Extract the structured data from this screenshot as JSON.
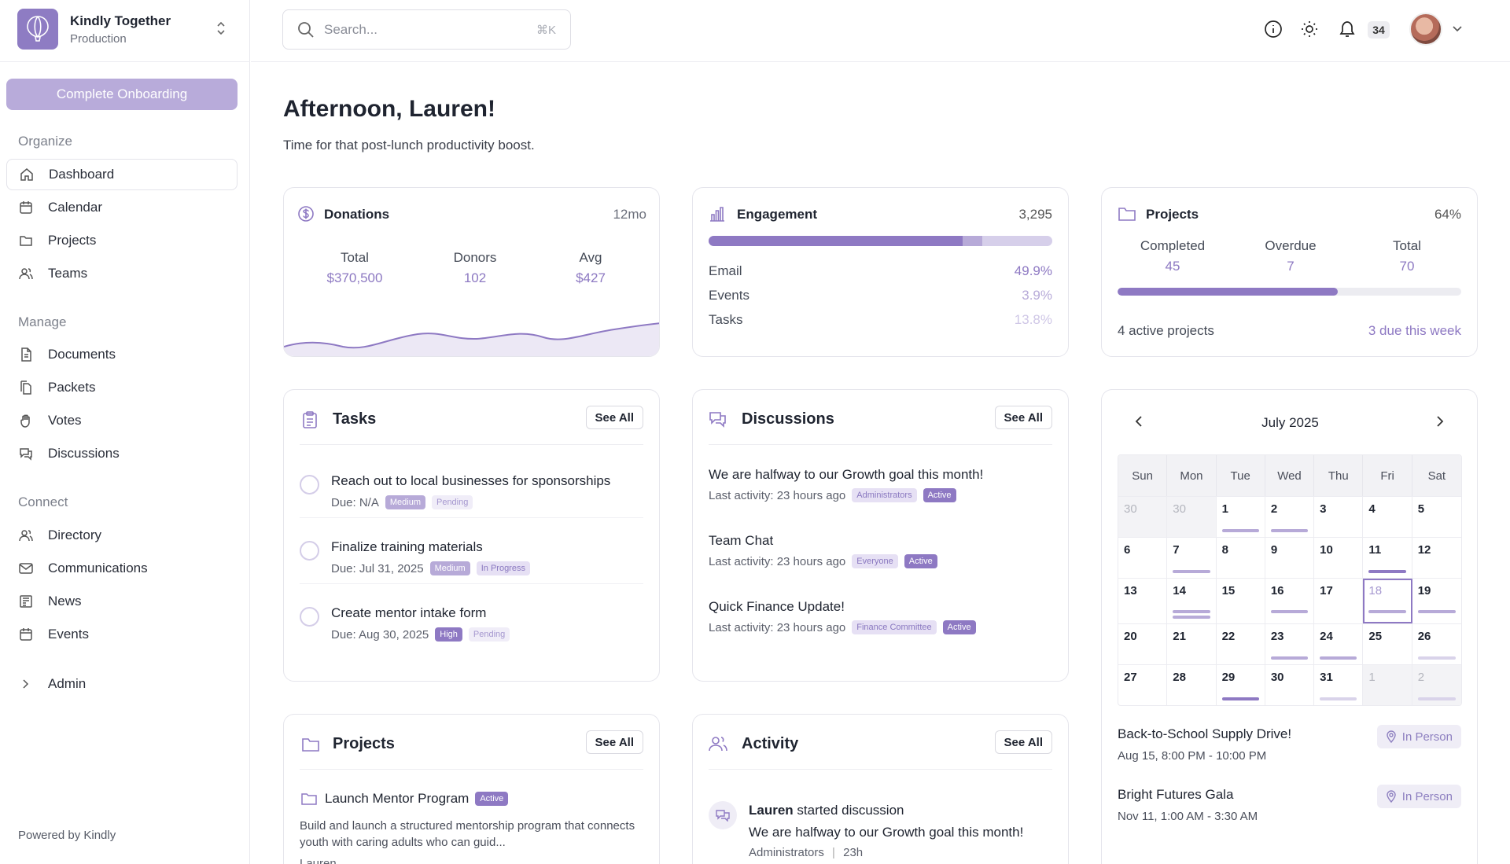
{
  "org": {
    "name": "Kindly Together",
    "env": "Production"
  },
  "sidebar": {
    "onboarding_label": "Complete Onboarding",
    "sections": {
      "organize": "Organize",
      "manage": "Manage",
      "connect": "Connect"
    },
    "items": {
      "dashboard": "Dashboard",
      "calendar": "Calendar",
      "projects": "Projects",
      "teams": "Teams",
      "documents": "Documents",
      "packets": "Packets",
      "votes": "Votes",
      "discussions": "Discussions",
      "directory": "Directory",
      "communications": "Communications",
      "news": "News",
      "events": "Events",
      "admin": "Admin"
    },
    "powered_by": "Powered by Kindly"
  },
  "header": {
    "search_placeholder": "Search...",
    "search_shortcut": "⌘K",
    "notification_count": "34"
  },
  "greeting": {
    "title": "Afternoon, Lauren!",
    "subtitle": "Time for that post-lunch productivity boost."
  },
  "donations": {
    "title": "Donations",
    "period": "12mo",
    "total_label": "Total",
    "total_value": "$370,500",
    "donors_label": "Donors",
    "donors_value": "102",
    "avg_label": "Avg",
    "avg_value": "$427"
  },
  "engagement": {
    "title": "Engagement",
    "total": "3,295",
    "rows": [
      {
        "label": "Email",
        "value": "49.9%",
        "fraction": 0.499
      },
      {
        "label": "Events",
        "value": "3.9%",
        "fraction": 0.039
      },
      {
        "label": "Tasks",
        "value": "13.8%",
        "fraction": 0.138
      }
    ]
  },
  "projects_stats": {
    "title": "Projects",
    "percent": "64%",
    "fraction": 0.64,
    "completed_label": "Completed",
    "completed_value": "45",
    "overdue_label": "Overdue",
    "overdue_value": "7",
    "total_label": "Total",
    "total_value": "70",
    "active_text": "4 active projects",
    "due_text": "3 due this week"
  },
  "tasks": {
    "title": "Tasks",
    "see_all": "See All",
    "items": [
      {
        "title": "Reach out to local businesses for sponsorships",
        "due": "Due: N/A",
        "priority": "Medium",
        "status": "Pending"
      },
      {
        "title": "Finalize training materials",
        "due": "Due: Jul 31, 2025",
        "priority": "Medium",
        "status": "In Progress"
      },
      {
        "title": "Create mentor intake form",
        "due": "Due: Aug 30, 2025",
        "priority": "High",
        "status": "Pending"
      }
    ]
  },
  "discussions": {
    "title": "Discussions",
    "see_all": "See All",
    "items": [
      {
        "title": "We are halfway to our Growth goal this month!",
        "meta": "Last activity: 23 hours ago",
        "group": "Administrators",
        "status": "Active"
      },
      {
        "title": "Team Chat",
        "meta": "Last activity: 23 hours ago",
        "group": "Everyone",
        "status": "Active"
      },
      {
        "title": "Quick Finance Update!",
        "meta": "Last activity: 23 hours ago",
        "group": "Finance Committee",
        "status": "Active"
      }
    ]
  },
  "calendar": {
    "month": "July 2025",
    "weekdays": [
      "Sun",
      "Mon",
      "Tue",
      "Wed",
      "Thu",
      "Fri",
      "Sat"
    ],
    "weeks": [
      [
        "30",
        "30",
        "1",
        "2",
        "3",
        "4",
        "5"
      ],
      [
        "6",
        "7",
        "8",
        "9",
        "10",
        "11",
        "12"
      ],
      [
        "13",
        "14",
        "15",
        "16",
        "17",
        "18",
        "19"
      ],
      [
        "20",
        "21",
        "22",
        "23",
        "24",
        "25",
        "26"
      ],
      [
        "27",
        "28",
        "29",
        "30",
        "31",
        "1",
        "2"
      ]
    ],
    "events": [
      {
        "title": "Back-to-School Supply Drive!",
        "time": "Aug 15, 8:00 PM - 10:00 PM",
        "type": "In Person"
      },
      {
        "title": "Bright Futures Gala",
        "time": "Nov 11, 1:00 AM - 3:30 AM",
        "type": "In Person"
      }
    ]
  },
  "projects_list": {
    "title": "Projects",
    "see_all": "See All",
    "item": {
      "title": "Launch Mentor Program",
      "status": "Active",
      "description": "Build and launch a structured mentorship program that connects youth with caring adults who can guid...",
      "owner": "Lauren"
    }
  },
  "activity": {
    "title": "Activity",
    "see_all": "See All",
    "item": {
      "actor": "Lauren",
      "action": "started discussion",
      "subject": "We are halfway to our Growth goal this month!",
      "group": "Administrators",
      "time": "23h"
    }
  },
  "colors": {
    "accent": "#8e79c3",
    "accent_light": "#b7aad8",
    "accent_pale": "#e6e0f4"
  }
}
